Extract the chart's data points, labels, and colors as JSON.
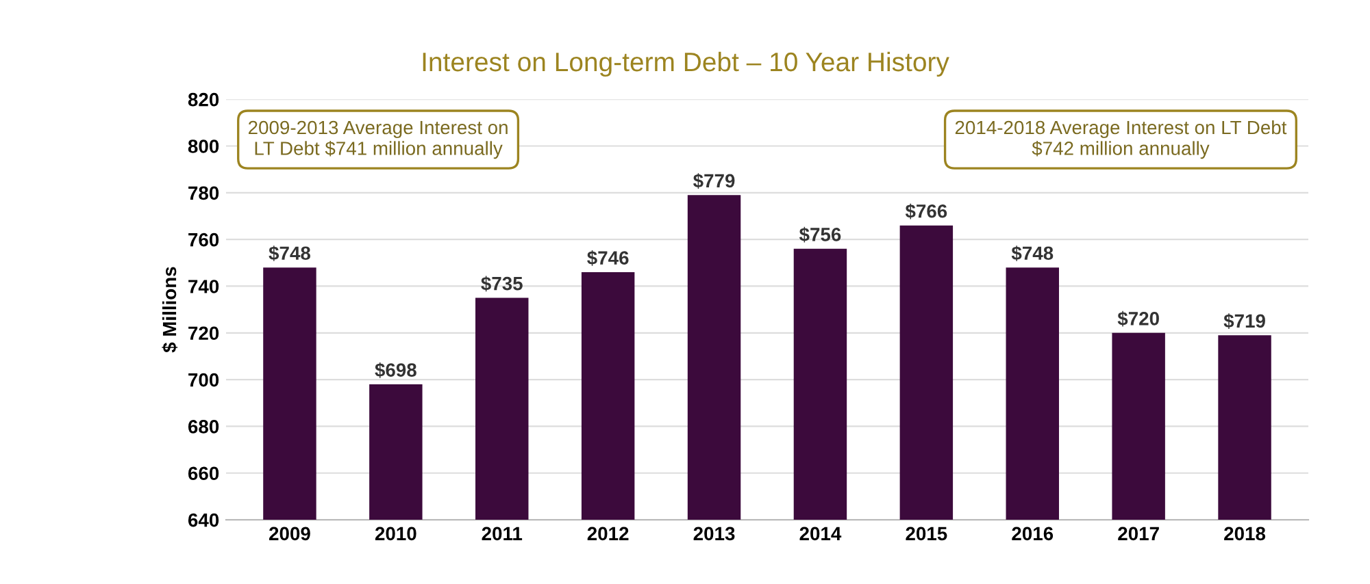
{
  "chart_data": {
    "type": "bar",
    "title": "Interest on Long-term Debt – 10 Year History",
    "ylabel": "$ Millions",
    "categories": [
      "2009",
      "2010",
      "2011",
      "2012",
      "2013",
      "2014",
      "2015",
      "2016",
      "2017",
      "2018"
    ],
    "values": [
      748,
      698,
      735,
      746,
      779,
      756,
      766,
      748,
      720,
      719
    ],
    "value_labels": [
      "$748",
      "$698",
      "$735",
      "$746",
      "$779",
      "$756",
      "$766",
      "$748",
      "$720",
      "$719"
    ],
    "color": "#3c0a3c",
    "ylim": [
      640,
      820
    ],
    "yticks": [
      640,
      660,
      680,
      700,
      720,
      740,
      760,
      780,
      800,
      820
    ],
    "grid": "y",
    "annotations": [
      "2009-2013 Average Interest on\nLT Debt $741 million annually",
      "2014-2018 Average Interest on LT Debt\n$742 million annually"
    ]
  }
}
